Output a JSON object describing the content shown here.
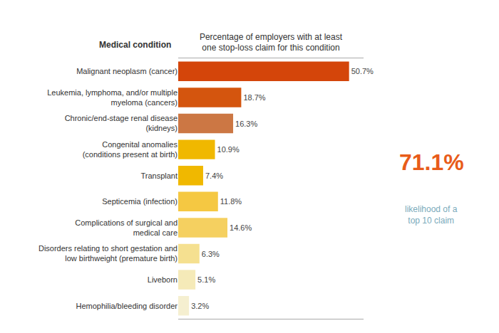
{
  "chart_data": {
    "type": "bar",
    "orientation": "horizontal",
    "xlabel": "Percentage of employers with at least\none stop-loss claim for this condition",
    "ylabel": "Medical condition",
    "categories": [
      "Malignant neoplasm (cancer)",
      "Leukemia, lymphoma, and/or multiple\nmyeloma (cancers)",
      "Chronic/end-stage renal disease\n(kidneys)",
      "Congenital anomalies\n(conditions present at birth)",
      "Transplant",
      "Septicemia (infection)",
      "Complications of surgical and\nmedical care",
      "Disorders relating to short gestation and\nlow birthweight (premature birth)",
      "Liveborn",
      "Hemophilia/bleeding disorder"
    ],
    "values": [
      50.7,
      18.7,
      16.3,
      10.9,
      7.4,
      11.8,
      14.6,
      6.3,
      5.1,
      3.2
    ],
    "value_labels": [
      "50.7%",
      "18.7%",
      "16.3%",
      "10.9%",
      "7.4%",
      "11.8%",
      "14.6%",
      "6.3%",
      "5.1%",
      "3.2%"
    ],
    "data_labels": true,
    "colors": [
      "#d4450a",
      "#d4550e",
      "#cc7744",
      "#f0b800",
      "#f0b800",
      "#f5c842",
      "#f5d060",
      "#f5e090",
      "#f5eab8",
      "#f5efd0"
    ],
    "xlim": [
      0,
      55
    ],
    "tick_labels": "y",
    "grid": false,
    "annotations": [
      {
        "text": "71.1%",
        "color": "#e85c1a"
      },
      {
        "text": "likelihood of a\ntop 10 claim",
        "color": "#7aaabb"
      }
    ]
  }
}
